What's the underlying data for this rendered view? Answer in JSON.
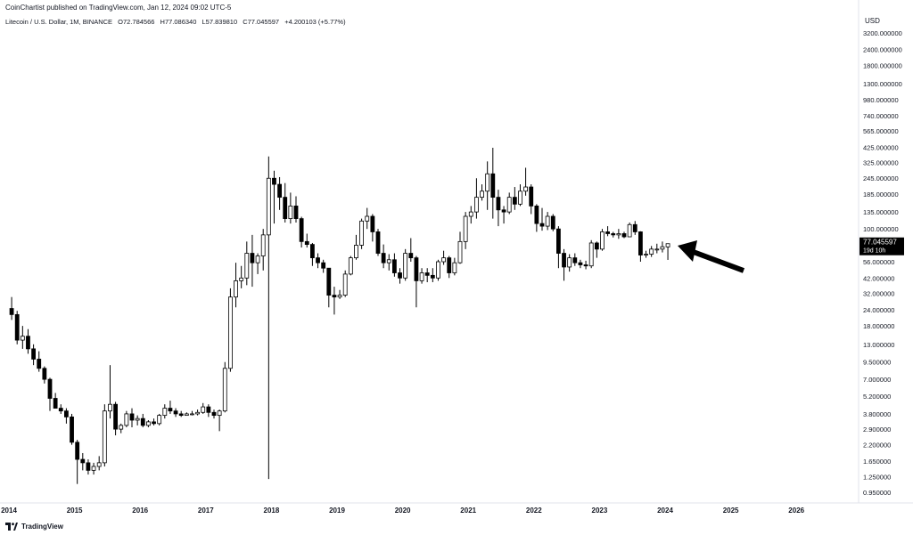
{
  "header": {
    "published_by": "CoinChartist published on TradingView.com, Jan 12, 2024 09:02 UTC-5"
  },
  "symbol_info": {
    "name": "Litecoin / U.S. Dollar, 1M, BINANCE",
    "open": "O72.784566",
    "high": "H77.086340",
    "low": "L57.839810",
    "close": "C77.045597",
    "change": "+4.200103 (+5.77%)"
  },
  "price_axis": {
    "currency": "USD",
    "ticks": [
      "3200.000000",
      "2400.000000",
      "1800.000000",
      "1300.000000",
      "980.000000",
      "740.000000",
      "565.000000",
      "425.000000",
      "325.000000",
      "245.000000",
      "185.000000",
      "135.000000",
      "100.000000",
      "77.045597",
      "56.000000",
      "42.000000",
      "32.000000",
      "24.000000",
      "18.000000",
      "13.000000",
      "9.500000",
      "7.000000",
      "5.200000",
      "3.800000",
      "2.900000",
      "2.200000",
      "1.650000",
      "1.250000",
      "0.950000"
    ],
    "current_price_label": "77.045597",
    "countdown_label": "19d 10h"
  },
  "time_axis": {
    "labels": [
      "2014",
      "2015",
      "2016",
      "2017",
      "2018",
      "2019",
      "2020",
      "2021",
      "2022",
      "2023",
      "2024",
      "2025",
      "2026"
    ]
  },
  "footer": {
    "brand": "TradingView"
  },
  "colors": {
    "up_fill": "#ffffff",
    "down_fill": "#000000",
    "candle_stroke": "#000000",
    "last_price_bg": "#000000",
    "arrow": "#000000",
    "text": "#131722"
  },
  "chart_data": {
    "type": "candlestick",
    "interval": "1M",
    "scale": "log",
    "y_unit": "USD",
    "annotation": "arrow pointing to latest candle",
    "candles": [
      {
        "date": "2014-01",
        "o": 24.5,
        "h": 30,
        "l": 20,
        "c": 22
      },
      {
        "date": "2014-02",
        "o": 22,
        "h": 23.5,
        "l": 13,
        "c": 14
      },
      {
        "date": "2014-03",
        "o": 14,
        "h": 18,
        "l": 12,
        "c": 15
      },
      {
        "date": "2014-04",
        "o": 15,
        "h": 17,
        "l": 11,
        "c": 12
      },
      {
        "date": "2014-05",
        "o": 12,
        "h": 13,
        "l": 9,
        "c": 10
      },
      {
        "date": "2014-06",
        "o": 10,
        "h": 11.5,
        "l": 8,
        "c": 8.5
      },
      {
        "date": "2014-07",
        "o": 8.5,
        "h": 8.8,
        "l": 6.5,
        "c": 7
      },
      {
        "date": "2014-08",
        "o": 7,
        "h": 7.2,
        "l": 4,
        "c": 5
      },
      {
        "date": "2014-09",
        "o": 5,
        "h": 5.5,
        "l": 4.5,
        "c": 4.2
      },
      {
        "date": "2014-10",
        "o": 4.2,
        "h": 4.5,
        "l": 3.8,
        "c": 4
      },
      {
        "date": "2014-11",
        "o": 4,
        "h": 4.2,
        "l": 3.2,
        "c": 3.6
      },
      {
        "date": "2014-12",
        "o": 3.6,
        "h": 3.8,
        "l": 2.2,
        "c": 2.3
      },
      {
        "date": "2015-01",
        "o": 2.3,
        "h": 2.4,
        "l": 1.1,
        "c": 1.7
      },
      {
        "date": "2015-02",
        "o": 1.7,
        "h": 1.9,
        "l": 1.4,
        "c": 1.6
      },
      {
        "date": "2015-03",
        "o": 1.6,
        "h": 1.7,
        "l": 1.3,
        "c": 1.4
      },
      {
        "date": "2015-04",
        "o": 1.4,
        "h": 1.6,
        "l": 1.3,
        "c": 1.5
      },
      {
        "date": "2015-05",
        "o": 1.5,
        "h": 1.8,
        "l": 1.4,
        "c": 1.6
      },
      {
        "date": "2015-06",
        "o": 1.6,
        "h": 4.5,
        "l": 1.5,
        "c": 4.0
      },
      {
        "date": "2015-07",
        "o": 4.0,
        "h": 9,
        "l": 3.5,
        "c": 4.5
      },
      {
        "date": "2015-08",
        "o": 4.5,
        "h": 4.7,
        "l": 2.6,
        "c": 2.9
      },
      {
        "date": "2015-09",
        "o": 2.9,
        "h": 3.2,
        "l": 2.7,
        "c": 3.1
      },
      {
        "date": "2015-10",
        "o": 3.1,
        "h": 4,
        "l": 3,
        "c": 3.8
      },
      {
        "date": "2015-11",
        "o": 3.8,
        "h": 4.2,
        "l": 3.0,
        "c": 3.4
      },
      {
        "date": "2015-12",
        "o": 3.4,
        "h": 3.7,
        "l": 3.1,
        "c": 3.5
      },
      {
        "date": "2016-01",
        "o": 3.5,
        "h": 3.8,
        "l": 3.0,
        "c": 3.1
      },
      {
        "date": "2016-02",
        "o": 3.1,
        "h": 3.4,
        "l": 3.0,
        "c": 3.3
      },
      {
        "date": "2016-03",
        "o": 3.3,
        "h": 3.5,
        "l": 3.1,
        "c": 3.2
      },
      {
        "date": "2016-04",
        "o": 3.2,
        "h": 3.8,
        "l": 3.1,
        "c": 3.7
      },
      {
        "date": "2016-05",
        "o": 3.7,
        "h": 4.5,
        "l": 3.5,
        "c": 4.2
      },
      {
        "date": "2016-06",
        "o": 4.2,
        "h": 4.8,
        "l": 3.8,
        "c": 4.0
      },
      {
        "date": "2016-07",
        "o": 4.0,
        "h": 4.2,
        "l": 3.6,
        "c": 3.8
      },
      {
        "date": "2016-08",
        "o": 3.8,
        "h": 4.0,
        "l": 3.6,
        "c": 3.7
      },
      {
        "date": "2016-09",
        "o": 3.7,
        "h": 3.9,
        "l": 3.7,
        "c": 3.8
      },
      {
        "date": "2016-10",
        "o": 3.8,
        "h": 4.0,
        "l": 3.7,
        "c": 3.8
      },
      {
        "date": "2016-11",
        "o": 3.8,
        "h": 4.1,
        "l": 3.7,
        "c": 3.9
      },
      {
        "date": "2016-12",
        "o": 3.9,
        "h": 4.6,
        "l": 3.8,
        "c": 4.3
      },
      {
        "date": "2017-01",
        "o": 4.3,
        "h": 4.5,
        "l": 3.6,
        "c": 3.9
      },
      {
        "date": "2017-02",
        "o": 3.9,
        "h": 4.1,
        "l": 3.5,
        "c": 3.7
      },
      {
        "date": "2017-03",
        "o": 3.7,
        "h": 4.1,
        "l": 2.8,
        "c": 4.0
      },
      {
        "date": "2017-04",
        "o": 4.0,
        "h": 9.5,
        "l": 3.9,
        "c": 8.5
      },
      {
        "date": "2017-05",
        "o": 8.5,
        "h": 35,
        "l": 8,
        "c": 30
      },
      {
        "date": "2017-06",
        "o": 30,
        "h": 55,
        "l": 25,
        "c": 40
      },
      {
        "date": "2017-07",
        "o": 40,
        "h": 52,
        "l": 35,
        "c": 42
      },
      {
        "date": "2017-08",
        "o": 42,
        "h": 80,
        "l": 37,
        "c": 65
      },
      {
        "date": "2017-09",
        "o": 65,
        "h": 90,
        "l": 36,
        "c": 55
      },
      {
        "date": "2017-10",
        "o": 55,
        "h": 65,
        "l": 45,
        "c": 62
      },
      {
        "date": "2017-11",
        "o": 62,
        "h": 100,
        "l": 48,
        "c": 90
      },
      {
        "date": "2017-12",
        "o": 90,
        "h": 360,
        "l": 1.2,
        "c": 245
      },
      {
        "date": "2018-01",
        "o": 245,
        "h": 280,
        "l": 110,
        "c": 220
      },
      {
        "date": "2018-02",
        "o": 220,
        "h": 250,
        "l": 140,
        "c": 175
      },
      {
        "date": "2018-03",
        "o": 175,
        "h": 225,
        "l": 112,
        "c": 120
      },
      {
        "date": "2018-04",
        "o": 120,
        "h": 190,
        "l": 110,
        "c": 150
      },
      {
        "date": "2018-05",
        "o": 150,
        "h": 178,
        "l": 112,
        "c": 120
      },
      {
        "date": "2018-06",
        "o": 120,
        "h": 124,
        "l": 72,
        "c": 80
      },
      {
        "date": "2018-07",
        "o": 80,
        "h": 92,
        "l": 72,
        "c": 76
      },
      {
        "date": "2018-08",
        "o": 76,
        "h": 78,
        "l": 52,
        "c": 60
      },
      {
        "date": "2018-09",
        "o": 60,
        "h": 65,
        "l": 50,
        "c": 55
      },
      {
        "date": "2018-10",
        "o": 55,
        "h": 58,
        "l": 46,
        "c": 50
      },
      {
        "date": "2018-11",
        "o": 50,
        "h": 50,
        "l": 25,
        "c": 31
      },
      {
        "date": "2018-12",
        "o": 31,
        "h": 36,
        "l": 22,
        "c": 30
      },
      {
        "date": "2019-01",
        "o": 30,
        "h": 34,
        "l": 29,
        "c": 31
      },
      {
        "date": "2019-02",
        "o": 31,
        "h": 48,
        "l": 30,
        "c": 45
      },
      {
        "date": "2019-03",
        "o": 45,
        "h": 62,
        "l": 44,
        "c": 60
      },
      {
        "date": "2019-04",
        "o": 60,
        "h": 90,
        "l": 58,
        "c": 75
      },
      {
        "date": "2019-05",
        "o": 75,
        "h": 120,
        "l": 70,
        "c": 115
      },
      {
        "date": "2019-06",
        "o": 115,
        "h": 145,
        "l": 100,
        "c": 125
      },
      {
        "date": "2019-07",
        "o": 125,
        "h": 130,
        "l": 80,
        "c": 95
      },
      {
        "date": "2019-08",
        "o": 95,
        "h": 100,
        "l": 62,
        "c": 65
      },
      {
        "date": "2019-09",
        "o": 65,
        "h": 76,
        "l": 50,
        "c": 55
      },
      {
        "date": "2019-10",
        "o": 55,
        "h": 64,
        "l": 48,
        "c": 58
      },
      {
        "date": "2019-11",
        "o": 58,
        "h": 65,
        "l": 43,
        "c": 46
      },
      {
        "date": "2019-12",
        "o": 46,
        "h": 50,
        "l": 38,
        "c": 42
      },
      {
        "date": "2020-01",
        "o": 42,
        "h": 70,
        "l": 40,
        "c": 65
      },
      {
        "date": "2020-02",
        "o": 65,
        "h": 85,
        "l": 56,
        "c": 60
      },
      {
        "date": "2020-03",
        "o": 60,
        "h": 62,
        "l": 25,
        "c": 40
      },
      {
        "date": "2020-04",
        "o": 40,
        "h": 50,
        "l": 38,
        "c": 46
      },
      {
        "date": "2020-05",
        "o": 46,
        "h": 50,
        "l": 39,
        "c": 44
      },
      {
        "date": "2020-06",
        "o": 44,
        "h": 50,
        "l": 39,
        "c": 42
      },
      {
        "date": "2020-07",
        "o": 42,
        "h": 58,
        "l": 40,
        "c": 56
      },
      {
        "date": "2020-08",
        "o": 56,
        "h": 68,
        "l": 53,
        "c": 60
      },
      {
        "date": "2020-09",
        "o": 60,
        "h": 62,
        "l": 42,
        "c": 46
      },
      {
        "date": "2020-10",
        "o": 46,
        "h": 60,
        "l": 44,
        "c": 55
      },
      {
        "date": "2020-11",
        "o": 55,
        "h": 95,
        "l": 54,
        "c": 80
      },
      {
        "date": "2020-12",
        "o": 80,
        "h": 135,
        "l": 70,
        "c": 125
      },
      {
        "date": "2021-01",
        "o": 125,
        "h": 150,
        "l": 110,
        "c": 135
      },
      {
        "date": "2021-02",
        "o": 135,
        "h": 245,
        "l": 120,
        "c": 175
      },
      {
        "date": "2021-03",
        "o": 175,
        "h": 220,
        "l": 165,
        "c": 195
      },
      {
        "date": "2021-04",
        "o": 195,
        "h": 330,
        "l": 140,
        "c": 265
      },
      {
        "date": "2021-05",
        "o": 265,
        "h": 420,
        "l": 120,
        "c": 175
      },
      {
        "date": "2021-06",
        "o": 175,
        "h": 200,
        "l": 105,
        "c": 140
      },
      {
        "date": "2021-07",
        "o": 140,
        "h": 150,
        "l": 110,
        "c": 135
      },
      {
        "date": "2021-08",
        "o": 135,
        "h": 190,
        "l": 130,
        "c": 175
      },
      {
        "date": "2021-09",
        "o": 175,
        "h": 210,
        "l": 140,
        "c": 155
      },
      {
        "date": "2021-10",
        "o": 155,
        "h": 220,
        "l": 150,
        "c": 195
      },
      {
        "date": "2021-11",
        "o": 195,
        "h": 295,
        "l": 180,
        "c": 210
      },
      {
        "date": "2021-12",
        "o": 210,
        "h": 220,
        "l": 130,
        "c": 150
      },
      {
        "date": "2022-01",
        "o": 150,
        "h": 155,
        "l": 95,
        "c": 110
      },
      {
        "date": "2022-02",
        "o": 110,
        "h": 145,
        "l": 97,
        "c": 105
      },
      {
        "date": "2022-03",
        "o": 105,
        "h": 135,
        "l": 98,
        "c": 125
      },
      {
        "date": "2022-04",
        "o": 125,
        "h": 130,
        "l": 96,
        "c": 100
      },
      {
        "date": "2022-05",
        "o": 100,
        "h": 105,
        "l": 50,
        "c": 65
      },
      {
        "date": "2022-06",
        "o": 65,
        "h": 70,
        "l": 40,
        "c": 51
      },
      {
        "date": "2022-07",
        "o": 51,
        "h": 64,
        "l": 47,
        "c": 60
      },
      {
        "date": "2022-08",
        "o": 60,
        "h": 65,
        "l": 52,
        "c": 55
      },
      {
        "date": "2022-09",
        "o": 55,
        "h": 58,
        "l": 50,
        "c": 53
      },
      {
        "date": "2022-10",
        "o": 53,
        "h": 57,
        "l": 49,
        "c": 52
      },
      {
        "date": "2022-11",
        "o": 52,
        "h": 82,
        "l": 50,
        "c": 78
      },
      {
        "date": "2022-12",
        "o": 78,
        "h": 80,
        "l": 60,
        "c": 70
      },
      {
        "date": "2023-01",
        "o": 70,
        "h": 100,
        "l": 68,
        "c": 95
      },
      {
        "date": "2023-02",
        "o": 95,
        "h": 105,
        "l": 88,
        "c": 92
      },
      {
        "date": "2023-03",
        "o": 92,
        "h": 95,
        "l": 86,
        "c": 90
      },
      {
        "date": "2023-04",
        "o": 90,
        "h": 100,
        "l": 84,
        "c": 92
      },
      {
        "date": "2023-05",
        "o": 92,
        "h": 95,
        "l": 85,
        "c": 87
      },
      {
        "date": "2023-06",
        "o": 87,
        "h": 112,
        "l": 88,
        "c": 108
      },
      {
        "date": "2023-07",
        "o": 108,
        "h": 115,
        "l": 90,
        "c": 95
      },
      {
        "date": "2023-08",
        "o": 95,
        "h": 96,
        "l": 56,
        "c": 63
      },
      {
        "date": "2023-09",
        "o": 63,
        "h": 68,
        "l": 60,
        "c": 64
      },
      {
        "date": "2023-10",
        "o": 64,
        "h": 74,
        "l": 61,
        "c": 70
      },
      {
        "date": "2023-11",
        "o": 70,
        "h": 77,
        "l": 65,
        "c": 70
      },
      {
        "date": "2023-12",
        "o": 70,
        "h": 80,
        "l": 66,
        "c": 73
      },
      {
        "date": "2024-01",
        "o": 72.784566,
        "h": 77.08634,
        "l": 57.83981,
        "c": 77.045597
      }
    ]
  }
}
